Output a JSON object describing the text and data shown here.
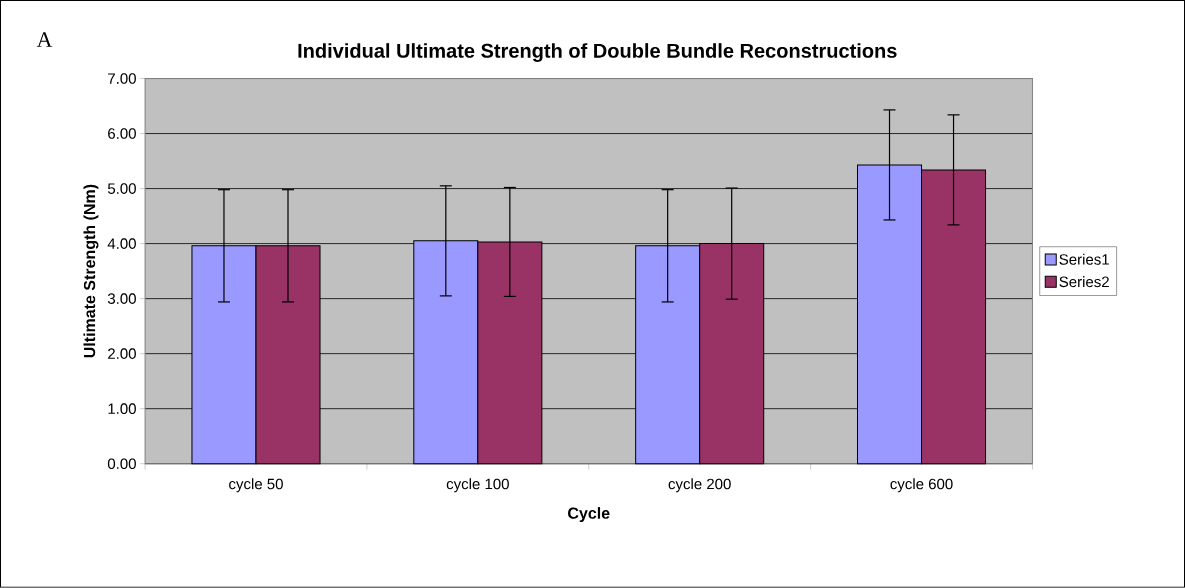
{
  "chart_data": {
    "type": "bar",
    "title": "Individual Ultimate Strength of Double Bundle Reconstructions",
    "xlabel": "Cycle",
    "ylabel": "Ultimate Strength (Nm)",
    "annotations": [
      "A"
    ],
    "categories": [
      "cycle 50",
      "cycle 100",
      "cycle 200",
      "cycle 600"
    ],
    "series": [
      {
        "name": "Series1",
        "color": "#9999ff",
        "values": [
          3.96,
          4.05,
          3.96,
          5.43
        ],
        "errors": [
          1.02,
          1.0,
          1.02,
          1.0
        ]
      },
      {
        "name": "Series2",
        "color": "#993366",
        "values": [
          3.96,
          4.03,
          4.0,
          5.34
        ],
        "errors": [
          1.02,
          0.99,
          1.01,
          1.0
        ]
      }
    ],
    "ylim": [
      0,
      7
    ],
    "yticks": [
      {
        "value": 0,
        "label": "0.00"
      },
      {
        "value": 1,
        "label": "1.00"
      },
      {
        "value": 2,
        "label": "2.00"
      },
      {
        "value": 3,
        "label": "3.00"
      },
      {
        "value": 4,
        "label": "4.00"
      },
      {
        "value": 5,
        "label": "5.00"
      },
      {
        "value": 6,
        "label": "6.00"
      },
      {
        "value": 7,
        "label": "7.00"
      }
    ],
    "grid": "y",
    "legend": "right"
  }
}
